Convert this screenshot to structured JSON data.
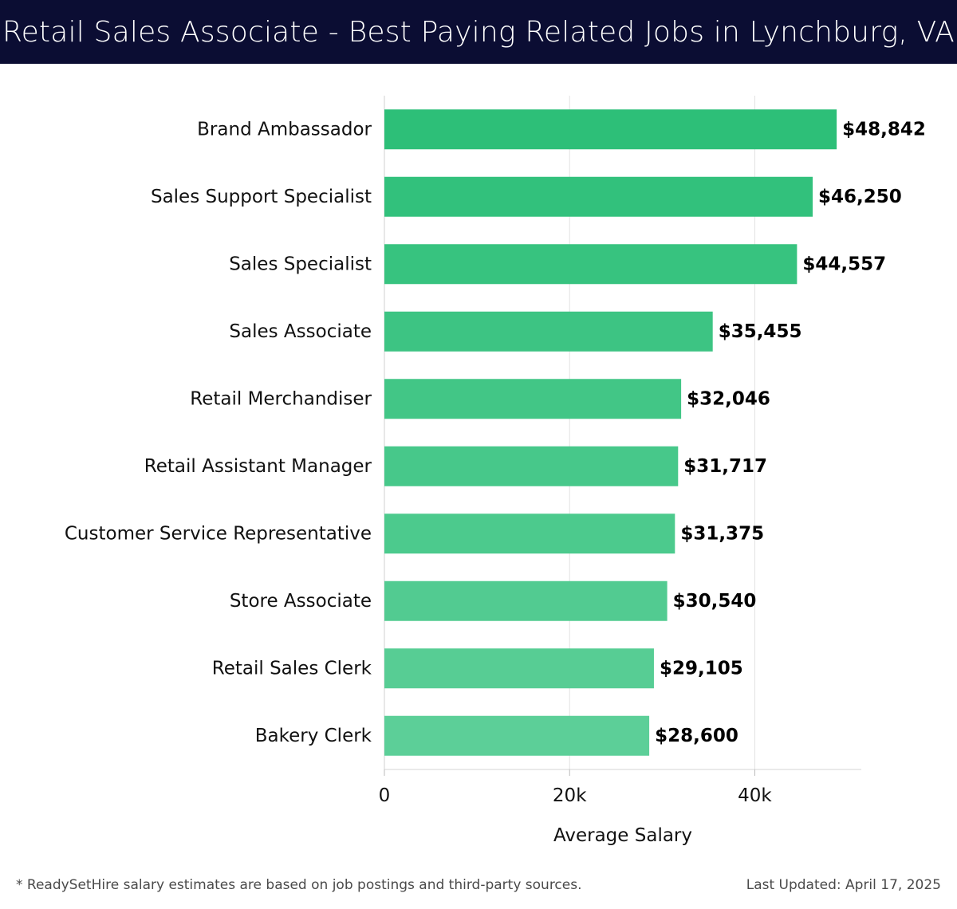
{
  "header": {
    "title": "Retail Sales Associate - Best Paying Related Jobs in Lynchburg, VA"
  },
  "footer": {
    "note": "* ReadySetHire salary estimates are based on job postings and third-party sources.",
    "updated": "Last Updated: April 17, 2025"
  },
  "colors": {
    "header_bg": "#0b0d33",
    "bar_top": "#2dbf78",
    "bar_bottom": "#5ccf98"
  },
  "chart_data": {
    "type": "bar",
    "orientation": "horizontal",
    "title": "Retail Sales Associate - Best Paying Related Jobs in Lynchburg, VA",
    "xlabel": "Average Salary",
    "ylabel": "",
    "xlim": [
      0,
      51500
    ],
    "xticks": [
      {
        "value": 0,
        "label": "0"
      },
      {
        "value": 20000,
        "label": "20k"
      },
      {
        "value": 40000,
        "label": "40k"
      }
    ],
    "grid": "vertical",
    "categories": [
      "Brand Ambassador",
      "Sales Support Specialist",
      "Sales Specialist",
      "Sales Associate",
      "Retail Merchandiser",
      "Retail Assistant Manager",
      "Customer Service Representative",
      "Store Associate",
      "Retail Sales Clerk",
      "Bakery Clerk"
    ],
    "values": [
      48842,
      46250,
      44557,
      35455,
      32046,
      31717,
      31375,
      30540,
      29105,
      28600
    ],
    "value_labels": [
      "$48,842",
      "$46,250",
      "$44,557",
      "$35,455",
      "$32,046",
      "$31,717",
      "$31,375",
      "$30,540",
      "$29,105",
      "$28,600"
    ]
  }
}
